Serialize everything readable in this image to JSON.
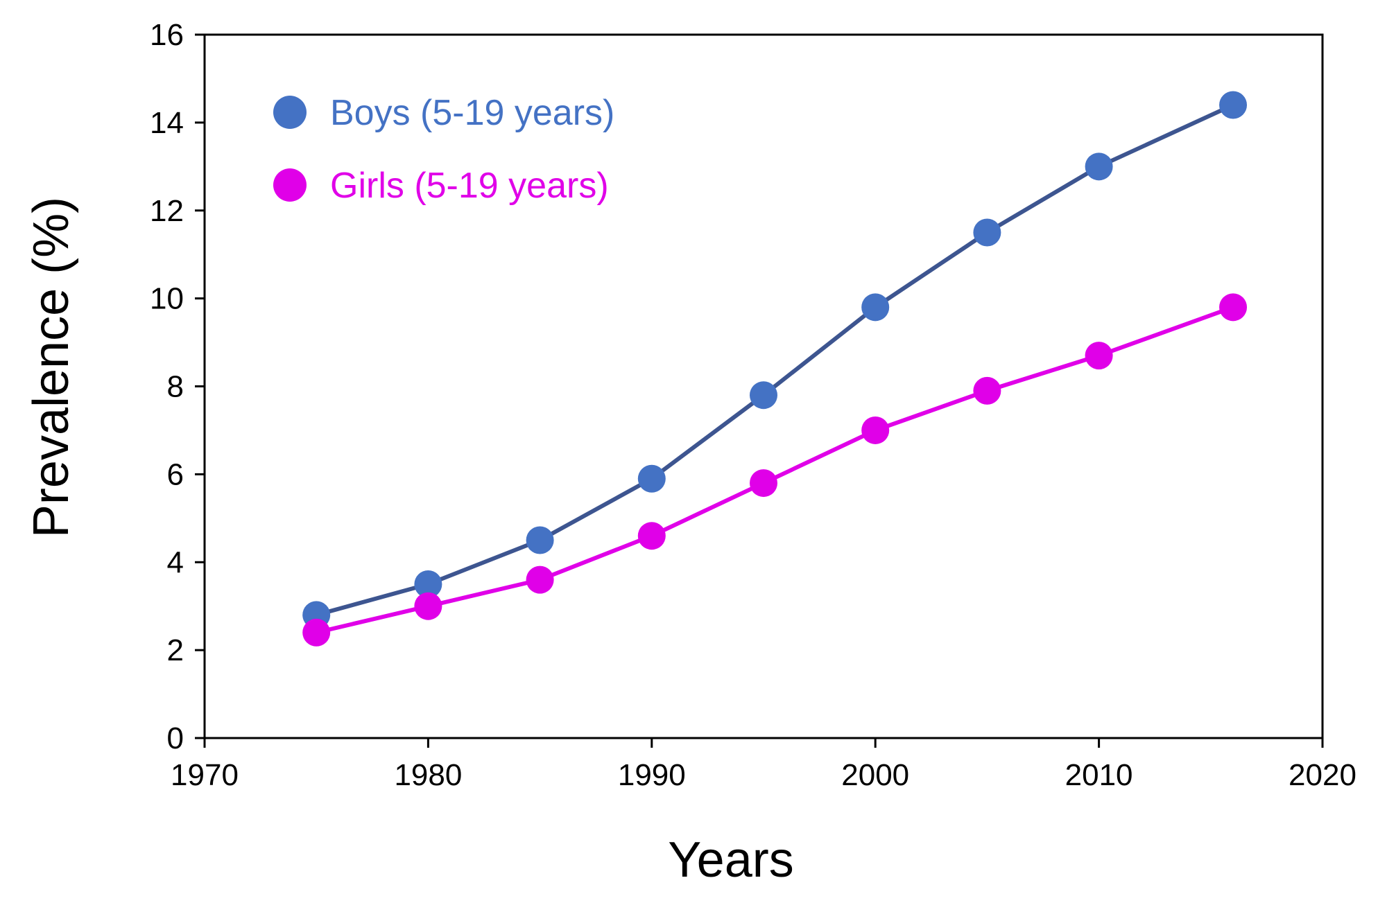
{
  "chart_data": {
    "type": "line",
    "title": "",
    "xlabel": "Years",
    "ylabel": "Prevalence (%)",
    "xlim": [
      1970,
      2020
    ],
    "ylim": [
      0,
      16
    ],
    "xticks": [
      1970,
      1980,
      1990,
      2000,
      2010,
      2020
    ],
    "yticks": [
      0,
      2,
      4,
      6,
      8,
      10,
      12,
      14,
      16
    ],
    "grid": false,
    "legend_position": "top-left",
    "series": [
      {
        "name": "Boys (5-19 years)",
        "color": "#4472c4",
        "line_color": "#3d5590",
        "x": [
          1975,
          1980,
          1985,
          1990,
          1995,
          2000,
          2005,
          2010,
          2016
        ],
        "y": [
          2.8,
          3.5,
          4.5,
          5.9,
          7.8,
          9.8,
          11.5,
          13.0,
          14.4
        ]
      },
      {
        "name": "Girls (5-19 years)",
        "color": "#e000e8",
        "line_color": "#e000e8",
        "x": [
          1975,
          1980,
          1985,
          1990,
          1995,
          2000,
          2005,
          2010,
          2016
        ],
        "y": [
          2.4,
          3.0,
          3.6,
          4.6,
          5.8,
          7.0,
          7.9,
          8.7,
          9.8
        ]
      }
    ]
  }
}
